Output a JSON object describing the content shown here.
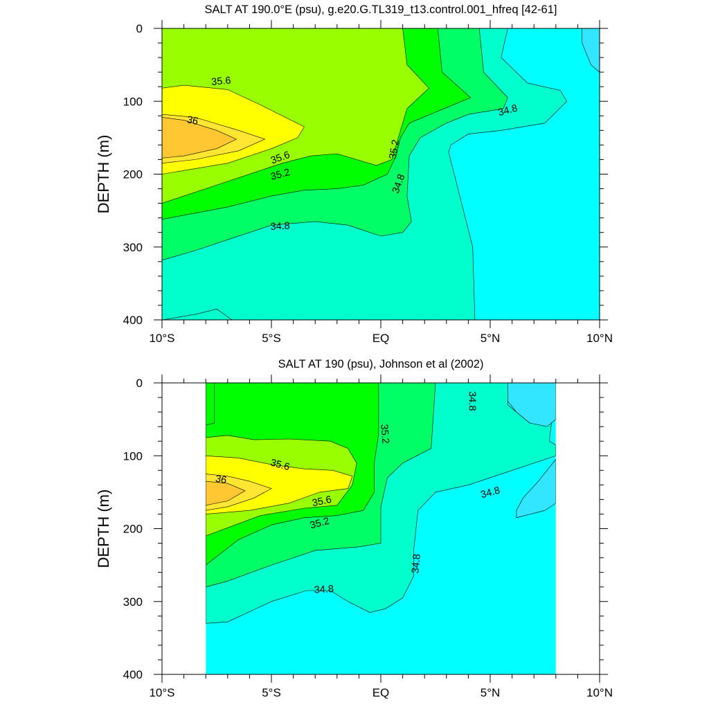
{
  "chart_data": [
    {
      "type": "contour",
      "title": "SALT AT 190.0°E (psu), g.e20.G.TL319_t13.control.001_hfreq [42-61]",
      "ylabel": "DEPTH (m)",
      "xlabel": "",
      "xlim": [
        -10,
        10
      ],
      "ylim": [
        400,
        0
      ],
      "x_ticks": [
        -10,
        -5,
        0,
        5,
        10
      ],
      "x_tick_labels": [
        "10°S",
        "5°S",
        "EQ",
        "5°N",
        "10°N"
      ],
      "y_ticks": [
        0,
        100,
        200,
        300,
        400
      ],
      "y_tick_labels": [
        "0",
        "100",
        "200",
        "300",
        "400"
      ],
      "data_extent": [
        -10,
        10
      ],
      "contour_levels": [
        34.6,
        34.8,
        35.0,
        35.2,
        35.4,
        35.6,
        35.8,
        36.0
      ],
      "region_salinity": [
        {
          "psu": 34.7,
          "outline": [
            [
              -10,
              0
            ],
            [
              10,
              0
            ],
            [
              10,
              400
            ],
            [
              -10,
              400
            ]
          ]
        },
        {
          "psu": 34.9,
          "outline": [
            [
              -10,
              0
            ],
            [
              5.8,
              0
            ],
            [
              5.5,
              40
            ],
            [
              6.7,
              75
            ],
            [
              8.2,
              85
            ],
            [
              8.5,
              100
            ],
            [
              7.5,
              130
            ],
            [
              5.5,
              140
            ],
            [
              4,
              145
            ],
            [
              3.2,
              160
            ],
            [
              3.1,
              170
            ],
            [
              4.2,
              300
            ],
            [
              4.3,
              400
            ],
            [
              -10,
              400
            ]
          ]
        },
        {
          "psu": 34.9,
          "outline": [
            [
              -10,
              400
            ],
            [
              -8.4,
              392
            ],
            [
              -7.5,
              385
            ],
            [
              -6.8,
              400
            ]
          ]
        },
        {
          "psu": 35.1,
          "outline": [
            [
              -10,
              0
            ],
            [
              4.5,
              0
            ],
            [
              4.7,
              60
            ],
            [
              5.8,
              95
            ],
            [
              5.6,
              110
            ],
            [
              4,
              118
            ],
            [
              3,
              130
            ],
            [
              1.8,
              150
            ],
            [
              1.3,
              175
            ],
            [
              1.2,
              230
            ],
            [
              1.4,
              265
            ],
            [
              1,
              280
            ],
            [
              0,
              285
            ],
            [
              -1.5,
              270
            ],
            [
              -3,
              265
            ],
            [
              -5,
              270
            ],
            [
              -7,
              290
            ],
            [
              -8.5,
              305
            ],
            [
              -10,
              318
            ]
          ]
        },
        {
          "psu": 35.3,
          "outline": [
            [
              -10,
              0
            ],
            [
              2.6,
              0
            ],
            [
              2.8,
              60
            ],
            [
              4.1,
              95
            ],
            [
              2.5,
              115
            ],
            [
              1.3,
              130
            ],
            [
              0.9,
              150
            ],
            [
              0.7,
              175
            ],
            [
              0.3,
              200
            ],
            [
              -0.8,
              215
            ],
            [
              -2,
              220
            ],
            [
              -3.5,
              222
            ],
            [
              -5,
              230
            ],
            [
              -7,
              245
            ],
            [
              -10,
              262
            ]
          ]
        },
        {
          "psu": 35.5,
          "outline": [
            [
              -10,
              0
            ],
            [
              1.0,
              0
            ],
            [
              1.2,
              50
            ],
            [
              2.2,
              82
            ],
            [
              1.2,
              110
            ],
            [
              0.8,
              150
            ],
            [
              0.5,
              180
            ],
            [
              -0.2,
              188
            ],
            [
              -1.1,
              180
            ],
            [
              -2,
              172
            ],
            [
              -3.2,
              175
            ],
            [
              -4.5,
              185
            ],
            [
              -7,
              210
            ],
            [
              -10,
              240
            ]
          ]
        },
        {
          "psu": 35.7,
          "outline": [
            [
              -10,
              82
            ],
            [
              -9,
              78
            ],
            [
              -7,
              84
            ],
            [
              -5.5,
              105
            ],
            [
              -3.5,
              135
            ],
            [
              -3.8,
              150
            ],
            [
              -5,
              165
            ],
            [
              -7,
              185
            ],
            [
              -10,
              200
            ]
          ]
        },
        {
          "psu": 35.9,
          "outline": [
            [
              -10,
              118
            ],
            [
              -8.5,
              122
            ],
            [
              -6.5,
              140
            ],
            [
              -5.3,
              152
            ],
            [
              -6.5,
              168
            ],
            [
              -8.5,
              180
            ],
            [
              -10,
              185
            ]
          ]
        },
        {
          "psu": 36.1,
          "outline": [
            [
              -10,
              122
            ],
            [
              -9,
              126
            ],
            [
              -7.5,
              140
            ],
            [
              -6.6,
              152
            ],
            [
              -7.5,
              165
            ],
            [
              -9,
              175
            ],
            [
              -10,
              178
            ]
          ]
        },
        {
          "psu": 34.5,
          "outline": [
            [
              9.2,
              0
            ],
            [
              10,
              0
            ],
            [
              10,
              60
            ],
            [
              9.6,
              50
            ],
            [
              9.2,
              20
            ]
          ]
        }
      ],
      "contour_labels": [
        {
          "text": "35.6",
          "x": -7.3,
          "y": 72,
          "rotate": -5
        },
        {
          "text": "36",
          "x": -8.6,
          "y": 126,
          "rotate": 12
        },
        {
          "text": "35.6",
          "x": -4.6,
          "y": 177,
          "rotate": -20
        },
        {
          "text": "35.2",
          "x": -4.6,
          "y": 200,
          "rotate": -15
        },
        {
          "text": "34.8",
          "x": -4.6,
          "y": 271,
          "rotate": -3
        },
        {
          "text": "35.2",
          "x": 0.6,
          "y": 166,
          "rotate": -80
        },
        {
          "text": "34.8",
          "x": 0.8,
          "y": 213,
          "rotate": -70
        },
        {
          "text": "34.8",
          "x": 5.8,
          "y": 112,
          "rotate": -15
        }
      ]
    },
    {
      "type": "contour",
      "title": "SALT AT 190 (psu), Johnson et al (2002)",
      "ylabel": "DEPTH (m)",
      "xlabel": "",
      "xlim": [
        -10,
        10
      ],
      "ylim": [
        400,
        0
      ],
      "x_ticks": [
        -10,
        -5,
        0,
        5,
        10
      ],
      "x_tick_labels": [
        "10°S",
        "5°S",
        "EQ",
        "5°N",
        "10°N"
      ],
      "y_ticks": [
        0,
        100,
        200,
        300,
        400
      ],
      "y_tick_labels": [
        "0",
        "100",
        "200",
        "300",
        "400"
      ],
      "data_extent": [
        -8,
        8
      ],
      "contour_levels": [
        34.6,
        34.8,
        35.0,
        35.2,
        35.4,
        35.6,
        35.8,
        36.0
      ],
      "region_salinity": [
        {
          "psu": 34.7,
          "outline": [
            [
              -8,
              0
            ],
            [
              8,
              0
            ],
            [
              8,
              400
            ],
            [
              -8,
              400
            ]
          ]
        },
        {
          "psu": 34.9,
          "outline": [
            [
              -8,
              0
            ],
            [
              5.8,
              0
            ],
            [
              5.8,
              30
            ],
            [
              6.8,
              55
            ],
            [
              7.8,
              55
            ],
            [
              7.7,
              80
            ],
            [
              8,
              85
            ],
            [
              8,
              100
            ],
            [
              6,
              120
            ],
            [
              4,
              140
            ],
            [
              2.5,
              150
            ],
            [
              1.7,
              175
            ],
            [
              1.5,
              230
            ],
            [
              1.5,
              265
            ],
            [
              1,
              295
            ],
            [
              0.2,
              310
            ],
            [
              -0.5,
              315
            ],
            [
              -1.5,
              300
            ],
            [
              -2.3,
              285
            ],
            [
              -3.4,
              285
            ],
            [
              -5,
              300
            ],
            [
              -7,
              328
            ],
            [
              -8,
              330
            ]
          ]
        },
        {
          "psu": 35.1,
          "outline": [
            [
              -8,
              0
            ],
            [
              2.5,
              0
            ],
            [
              2.3,
              90
            ],
            [
              1.0,
              110
            ],
            [
              0.3,
              130
            ],
            [
              0,
              170
            ],
            [
              0,
              220
            ],
            [
              -1,
              225
            ],
            [
              -3,
              230
            ],
            [
              -5,
              250
            ],
            [
              -7,
              272
            ],
            [
              -8,
              280
            ]
          ]
        },
        {
          "psu": 35.3,
          "outline": [
            [
              -8,
              0
            ],
            [
              -0.1,
              0
            ],
            [
              -0.1,
              70
            ],
            [
              -0.3,
              110
            ],
            [
              -0.3,
              150
            ],
            [
              -0.8,
              175
            ],
            [
              -2,
              182
            ],
            [
              -3.5,
              185
            ],
            [
              -5,
              195
            ],
            [
              -6.5,
              215
            ],
            [
              -8,
              250
            ]
          ]
        },
        {
          "psu": 35.3,
          "outline": [
            [
              -8,
              58
            ],
            [
              -7.6,
              55
            ],
            [
              -7.6,
              0
            ],
            [
              -8,
              0
            ]
          ]
        },
        {
          "psu": 35.5,
          "outline": [
            [
              -8,
              75
            ],
            [
              -7,
              72
            ],
            [
              -5.8,
              78
            ],
            [
              -4.2,
              77
            ],
            [
              -2.3,
              80
            ],
            [
              -1.5,
              90
            ],
            [
              -1.1,
              110
            ],
            [
              -1.3,
              140
            ],
            [
              -2,
              168
            ],
            [
              -3.5,
              172
            ],
            [
              -5.5,
              182
            ],
            [
              -8,
              210
            ]
          ]
        },
        {
          "psu": 35.7,
          "outline": [
            [
              -8,
              100
            ],
            [
              -6.5,
              103
            ],
            [
              -5,
              112
            ],
            [
              -3.5,
              118
            ],
            [
              -2.2,
              120
            ],
            [
              -1.3,
              128
            ],
            [
              -1.5,
              145
            ],
            [
              -2.8,
              150
            ],
            [
              -4.2,
              165
            ],
            [
              -6,
              175
            ],
            [
              -8,
              180
            ]
          ]
        },
        {
          "psu": 35.9,
          "outline": [
            [
              -8,
              125
            ],
            [
              -7,
              128
            ],
            [
              -6,
              135
            ],
            [
              -5,
              145
            ],
            [
              -5.8,
              158
            ],
            [
              -7,
              170
            ],
            [
              -8,
              175
            ]
          ]
        },
        {
          "psu": 36.1,
          "outline": [
            [
              -8,
              135
            ],
            [
              -7,
              138
            ],
            [
              -6.2,
              148
            ],
            [
              -7,
              162
            ],
            [
              -8,
              168
            ]
          ]
        },
        {
          "psu": 34.5,
          "outline": [
            [
              5.8,
              0
            ],
            [
              8,
              0
            ],
            [
              8,
              50
            ],
            [
              7.6,
              60
            ],
            [
              6.8,
              55
            ],
            [
              6.2,
              40
            ],
            [
              5.8,
              25
            ]
          ]
        },
        {
          "psu": 34.5,
          "outline": [
            [
              8,
              105
            ],
            [
              8,
              165
            ],
            [
              7.5,
              175
            ],
            [
              6.2,
              185
            ],
            [
              6.2,
              175
            ],
            [
              6.5,
              158
            ],
            [
              7.2,
              135
            ]
          ]
        }
      ],
      "contour_labels": [
        {
          "text": "35.6",
          "x": -4.6,
          "y": 112,
          "rotate": 15
        },
        {
          "text": "36",
          "x": -7.3,
          "y": 132,
          "rotate": 10
        },
        {
          "text": "35.6",
          "x": -2.7,
          "y": 162,
          "rotate": -12
        },
        {
          "text": "35.2",
          "x": -2.8,
          "y": 192,
          "rotate": -15
        },
        {
          "text": "34.8",
          "x": -2.6,
          "y": 283,
          "rotate": -3
        },
        {
          "text": "35.2",
          "x": 0.2,
          "y": 70,
          "rotate": 85
        },
        {
          "text": "34.8",
          "x": 4.2,
          "y": 25,
          "rotate": 90
        },
        {
          "text": "34.8",
          "x": 5.0,
          "y": 150,
          "rotate": -15
        },
        {
          "text": "34.8",
          "x": 1.6,
          "y": 248,
          "rotate": -85
        }
      ]
    }
  ]
}
